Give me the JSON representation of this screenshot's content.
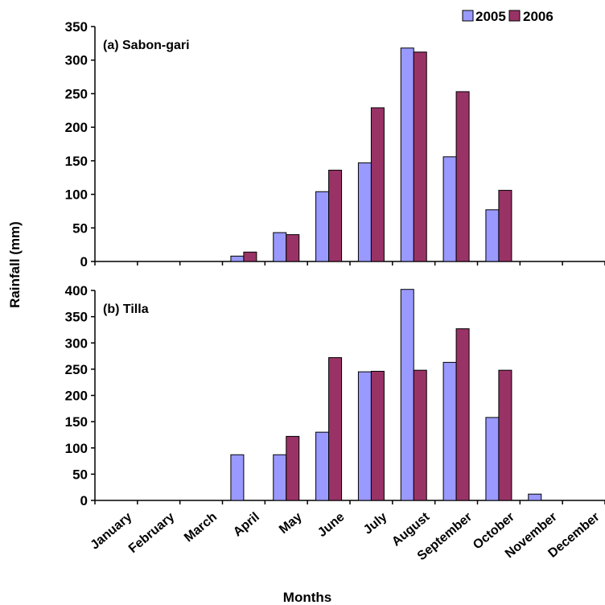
{
  "chart_data": {
    "type": "bar",
    "xlabel": "Months",
    "ylabel": "Rainfall (mm)",
    "categories": [
      "January",
      "February",
      "March",
      "April",
      "May",
      "June",
      "July",
      "August",
      "September",
      "October",
      "November",
      "December"
    ],
    "legend": {
      "position": "top-right",
      "entries": [
        {
          "name": "2005",
          "color": "#9999ff"
        },
        {
          "name": "2006",
          "color": "#993366"
        }
      ]
    },
    "panels": [
      {
        "title": "(a) Sabon-gari",
        "ylim": [
          0,
          350
        ],
        "yticks": [
          0,
          50,
          100,
          150,
          200,
          250,
          300,
          350
        ],
        "series": [
          {
            "name": "2005",
            "values": [
              0,
              0,
              0,
              8,
              43,
              104,
              147,
              318,
              156,
              77,
              0,
              0
            ]
          },
          {
            "name": "2006",
            "values": [
              0,
              0,
              0,
              14,
              40,
              136,
              229,
              312,
              253,
              106,
              0,
              0
            ]
          }
        ]
      },
      {
        "title": "(b) Tilla",
        "ylim": [
          0,
          400
        ],
        "yticks": [
          0,
          50,
          100,
          150,
          200,
          250,
          300,
          350,
          400
        ],
        "series": [
          {
            "name": "2005",
            "values": [
              0,
              0,
              0,
              87,
              87,
              130,
              245,
              402,
              263,
              158,
              12,
              0
            ]
          },
          {
            "name": "2006",
            "values": [
              0,
              0,
              0,
              0,
              122,
              272,
              246,
              248,
              327,
              248,
              0,
              0
            ]
          }
        ]
      }
    ]
  }
}
